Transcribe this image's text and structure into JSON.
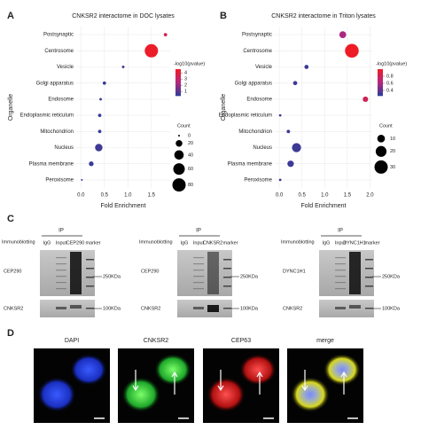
{
  "chart_data": [
    {
      "type": "bubble",
      "letter": "A",
      "title": "CNKSR2 interactome in DOC lysates",
      "xlabel": "Fold Enrichment",
      "ylabel": "Organelle",
      "categories": [
        "Postsynaptic",
        "Centrosome",
        "Vesicle",
        "Golgi apparatus",
        "Endosome",
        "Endoplasmic reticulum",
        "Mitochondrion",
        "Nucleus",
        "Plasma membrane",
        "Peroxisome"
      ],
      "values": [
        1.8,
        1.5,
        0.9,
        0.5,
        0.42,
        0.4,
        0.4,
        0.38,
        0.22,
        0.02
      ],
      "sizes": [
        5,
        80,
        3,
        5,
        3,
        5,
        5,
        25,
        10,
        1
      ],
      "color_values": [
        3.6,
        4.5,
        0.5,
        0.5,
        0.5,
        0.5,
        0.5,
        0.6,
        0.5,
        0.4
      ],
      "xlim": [
        -0.1,
        1.9
      ],
      "xticks": [
        {
          "value": 0,
          "label": "0.0"
        },
        0.5,
        {
          "value": 1,
          "label": "1.0"
        },
        1.5
      ],
      "colorbar": {
        "title": "-log10(pvalue)",
        "range": [
          0.3,
          4.6
        ],
        "ticks": [
          1,
          2,
          3,
          4
        ],
        "colors": [
          "#2b3d99",
          "#b3287f",
          "#ee1c25"
        ]
      },
      "size_legend": {
        "title": "Count",
        "values": [
          0,
          20,
          40,
          60,
          80
        ]
      }
    },
    {
      "type": "bubble",
      "letter": "B",
      "title": "CNKSR2 interactome in Triton lysates",
      "xlabel": "Fold Enrichment",
      "ylabel": "Organelle",
      "categories": [
        "Postsynaptic",
        "Centrosome",
        "Vesicle",
        "Golgi apparatus",
        "Endosome",
        "Endoplasmic reticulum",
        "Mitochondrion",
        "Nucleus",
        "Plasma membrane",
        "Peroxisome"
      ],
      "values": [
        1.4,
        1.6,
        0.6,
        0.35,
        1.9,
        0.02,
        0.2,
        0.38,
        0.25,
        0.02
      ],
      "sizes": [
        8,
        32,
        3,
        3,
        5,
        1,
        2,
        14,
        7,
        1
      ],
      "color_values": [
        0.6,
        1.0,
        0.3,
        0.3,
        0.8,
        0.3,
        0.3,
        0.3,
        0.3,
        0.3
      ],
      "xlim": [
        -0.1,
        2.05
      ],
      "xticks": [
        {
          "value": 0,
          "label": "0.0"
        },
        0.5,
        {
          "value": 1,
          "label": "1.0"
        },
        1.5,
        {
          "value": 2,
          "label": "2.0"
        }
      ],
      "colorbar": {
        "title": "-log10(pvalue)",
        "range": [
          0.25,
          1.0
        ],
        "ticks": [
          0.4,
          0.6,
          0.8
        ],
        "colors": [
          "#2b3d99",
          "#b3287f",
          "#ee1c25"
        ]
      },
      "size_legend": {
        "title": "Count",
        "values": [
          10,
          20,
          30
        ]
      }
    }
  ],
  "panel_c": {
    "letter": "C",
    "groups": [
      {
        "ip": "IP",
        "immunoblotting": "Immunoblotting",
        "lanes": [
          "IgG",
          "Input",
          "CEP290",
          "marker"
        ],
        "rows": [
          "CEP290",
          "CNKSR2"
        ],
        "markers": [
          "250KDa",
          "100KDa"
        ]
      },
      {
        "ip": "IP",
        "immunoblotting": "Immunoblotting",
        "lanes": [
          "IgG",
          "Input",
          "CNKSR2",
          "marker"
        ],
        "rows": [
          "CEP290",
          "CNKSR2"
        ],
        "markers": [
          "250KDa",
          "100KDa"
        ]
      },
      {
        "ip": "IP",
        "immunoblotting": "Immunoblotting",
        "lanes": [
          "IgG",
          "Input",
          "DYNC1H1",
          "marker"
        ],
        "rows": [
          "DYNC1H1",
          "CNKSR2"
        ],
        "markers": [
          "250KDa",
          "100KDa"
        ]
      }
    ]
  },
  "panel_d": {
    "letter": "D",
    "images": [
      "DAPI",
      "CNKSR2",
      "CEP63",
      "merge"
    ]
  }
}
